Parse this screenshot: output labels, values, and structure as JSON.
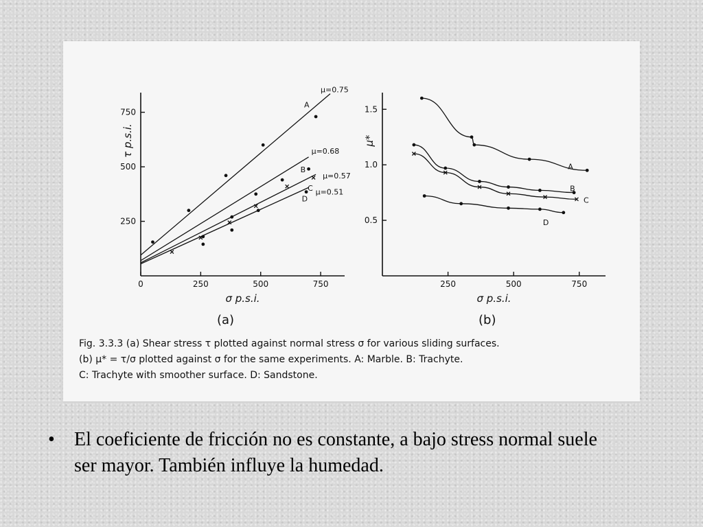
{
  "bullet": {
    "symbol": "•",
    "text": "El coeficiente de fricción no es constante, a bajo stress normal suele ser mayor. También influye la humedad."
  },
  "caption": {
    "line1": "Fig. 3.3.3  (a) Shear stress τ plotted against normal stress σ for various sliding surfaces.",
    "line2": "(b)  μ* = τ/σ  plotted against  σ  for the same experiments.  A: Marble.  B: Trachyte.",
    "line3": "C: Trachyte with smoother surface.  D: Sandstone."
  },
  "chart_data": [
    {
      "type": "scatter",
      "panel_label": "(a)",
      "xlabel": "σ  p.s.i.",
      "ylabel": "τ  p.s.i.",
      "xlim": [
        0,
        850
      ],
      "ylim": [
        0,
        840
      ],
      "xticks": [
        0,
        250,
        500,
        750
      ],
      "yticks": [
        250,
        500,
        750
      ],
      "series": [
        {
          "name": "A",
          "mu_label": "μ=0.75",
          "marker": "dot",
          "points": [
            [
              50,
              155
            ],
            [
              200,
              300
            ],
            [
              355,
              460
            ],
            [
              510,
              600
            ],
            [
              730,
              730
            ]
          ],
          "fit": [
            [
              0,
              95
            ],
            [
              790,
              835
            ]
          ]
        },
        {
          "name": "B",
          "mu_label": "μ=0.68",
          "marker": "dot",
          "points": [
            [
              260,
              180
            ],
            [
              380,
              270
            ],
            [
              480,
              375
            ],
            [
              590,
              440
            ],
            [
              700,
              490
            ]
          ],
          "fit": [
            [
              0,
              70
            ],
            [
              700,
              545
            ]
          ]
        },
        {
          "name": "C",
          "mu_label": "μ=0.57",
          "marker": "cross",
          "points": [
            [
              130,
              110
            ],
            [
              250,
              175
            ],
            [
              370,
              245
            ],
            [
              480,
              320
            ],
            [
              610,
              410
            ],
            [
              720,
              450
            ]
          ],
          "fit": [
            [
              0,
              60
            ],
            [
              730,
              465
            ]
          ]
        },
        {
          "name": "D",
          "mu_label": "μ=0.51",
          "marker": "dot",
          "points": [
            [
              260,
              145
            ],
            [
              380,
              210
            ],
            [
              490,
              300
            ],
            [
              690,
              385
            ]
          ],
          "fit": [
            [
              0,
              55
            ],
            [
              700,
              405
            ]
          ]
        }
      ]
    },
    {
      "type": "line",
      "panel_label": "(b)",
      "xlabel": "σ  p.s.i.",
      "ylabel": "μ*",
      "xlim": [
        0,
        850
      ],
      "ylim": [
        0,
        1.65
      ],
      "xticks": [
        250,
        500,
        750
      ],
      "yticks": [
        0.5,
        1.0,
        1.5
      ],
      "ytick_labels": [
        "0.5",
        "1.0",
        "1.5"
      ],
      "series": [
        {
          "name": "A",
          "marker": "dot",
          "points": [
            [
              150,
              1.6
            ],
            [
              340,
              1.25
            ],
            [
              350,
              1.18
            ],
            [
              560,
              1.05
            ],
            [
              780,
              0.95
            ]
          ]
        },
        {
          "name": "B",
          "marker": "dot",
          "points": [
            [
              120,
              1.18
            ],
            [
              240,
              0.97
            ],
            [
              370,
              0.85
            ],
            [
              480,
              0.8
            ],
            [
              600,
              0.77
            ],
            [
              730,
              0.75
            ]
          ]
        },
        {
          "name": "C",
          "marker": "cross",
          "points": [
            [
              120,
              1.1
            ],
            [
              240,
              0.93
            ],
            [
              370,
              0.8
            ],
            [
              480,
              0.74
            ],
            [
              620,
              0.71
            ],
            [
              740,
              0.69
            ]
          ]
        },
        {
          "name": "D",
          "marker": "dot",
          "points": [
            [
              160,
              0.72
            ],
            [
              300,
              0.65
            ],
            [
              480,
              0.61
            ],
            [
              600,
              0.6
            ],
            [
              690,
              0.57
            ]
          ]
        }
      ]
    }
  ]
}
